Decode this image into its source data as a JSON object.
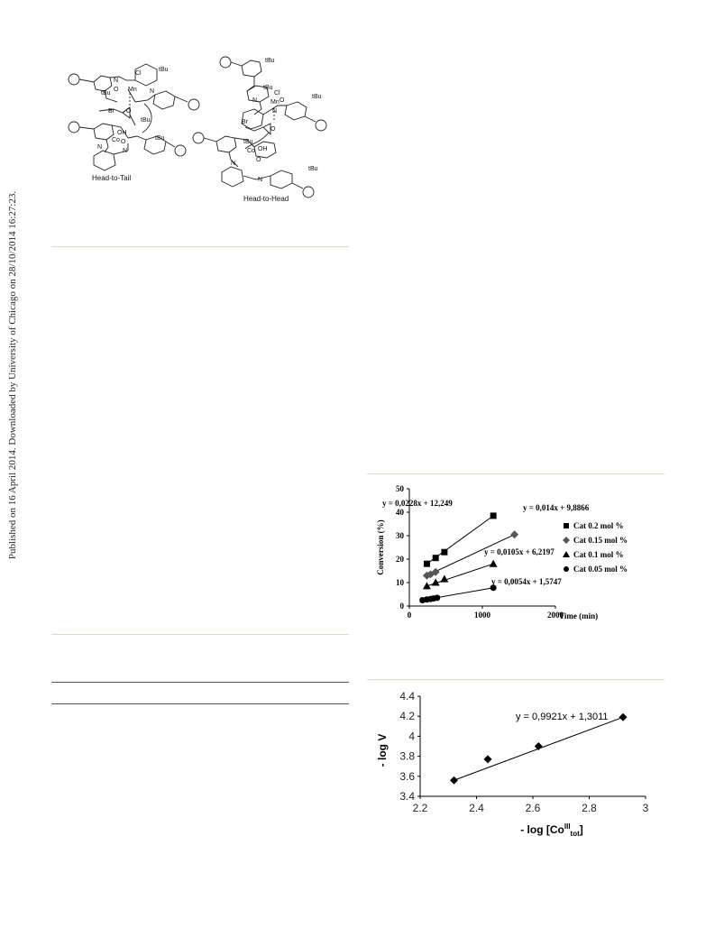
{
  "page": {
    "sidebar_text": "Published on 16 April 2014. Downloaded by University of Chicago on 28/10/2014 16:27:23."
  },
  "scheme": {
    "label_left": "Head-to-Tail",
    "label_right": "Head-to-Head",
    "atoms": {
      "tbu": "tBu",
      "cl": "Cl",
      "mn": "Mn",
      "co": "Co",
      "o": "O",
      "oh": "OH",
      "n": "N",
      "br": "Br"
    }
  },
  "chart_data": [
    {
      "type": "scatter",
      "title": "",
      "xlabel": "Time (min)",
      "ylabel": "Conversion (%)",
      "xlim": [
        0,
        2000
      ],
      "ylim": [
        0,
        50
      ],
      "xticks": [
        "0",
        "1000",
        "2000"
      ],
      "yticks": [
        "0",
        "10",
        "20",
        "30",
        "40",
        "50"
      ],
      "legend_position": "right",
      "series": [
        {
          "name": "Cat 0.2 mol %",
          "marker": "square",
          "trendline": "y = 0,0228x + 12,249",
          "x": [
            240,
            360,
            480,
            1150
          ],
          "y": [
            18,
            20.5,
            23,
            38.5
          ]
        },
        {
          "name": "Cat 0.15 mol %",
          "marker": "diamond",
          "trendline": "y = 0,014x + 9,8866",
          "x": [
            240,
            290,
            360,
            1440
          ],
          "y": [
            13,
            13.5,
            14.5,
            30.5
          ]
        },
        {
          "name": "Cat 0.1 mol %",
          "marker": "triangle",
          "trendline": "y = 0,0105x + 6,2197",
          "x": [
            240,
            360,
            480,
            1150
          ],
          "y": [
            8.5,
            10,
            11.5,
            18
          ]
        },
        {
          "name": "Cat 0.05 mol %",
          "marker": "circle",
          "trendline": "y = 0,0054x + 1,5747",
          "x": [
            180,
            240,
            290,
            330,
            380,
            1150
          ],
          "y": [
            2.5,
            2.8,
            3,
            3.2,
            3.5,
            7.8
          ]
        }
      ]
    },
    {
      "type": "scatter",
      "title": "",
      "xlabel_main": "- log [Co",
      "xlabel_sup": "III",
      "xlabel_sub": "tot",
      "xlabel_end": "]",
      "ylabel": "- log V",
      "xlim": [
        2.2,
        3
      ],
      "ylim": [
        3.4,
        4.4
      ],
      "xticks": [
        "2.2",
        "2.4",
        "2.6",
        "2.8",
        "3"
      ],
      "yticks": [
        "3.4",
        "3.6",
        "3.8",
        "4",
        "4.2",
        "4.4"
      ],
      "trendline": "y = 0,9921x + 1,3011",
      "series": [
        {
          "marker": "diamond",
          "x": [
            2.32,
            2.44,
            2.62,
            2.92
          ],
          "y": [
            3.56,
            3.77,
            3.9,
            4.19
          ]
        }
      ]
    }
  ]
}
